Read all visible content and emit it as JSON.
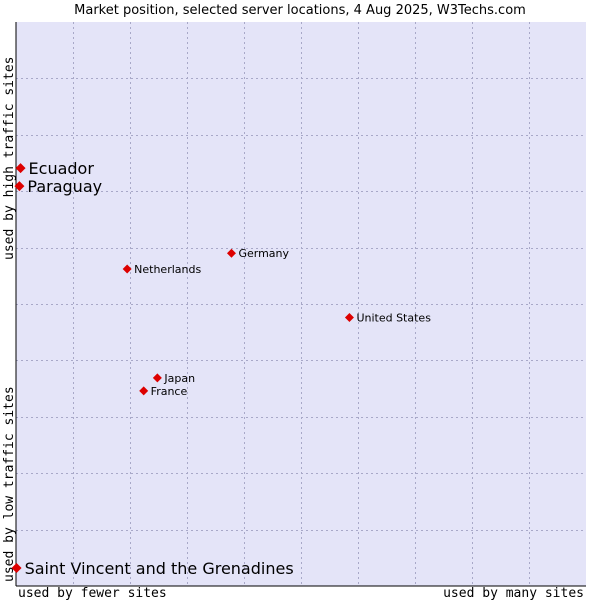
{
  "chart_data": {
    "type": "scatter",
    "title": "Market position, selected server locations, 4 Aug 2025, W3Techs.com",
    "xlabel_left": "used by fewer sites",
    "xlabel_right": "used by many sites",
    "ylabel_top": "used by high traffic sites",
    "ylabel_bottom": "used by low traffic sites",
    "xlim": [
      0,
      100
    ],
    "ylim": [
      0,
      100
    ],
    "grid": true,
    "colors": {
      "plot_bg": "#e4e4f8",
      "point": "#dd0000",
      "grid": "#a8a8c8"
    },
    "points": [
      {
        "label": "Ecuador",
        "x": 0.8,
        "y": 74.1,
        "size": "large"
      },
      {
        "label": "Paraguay",
        "x": 0.6,
        "y": 70.9,
        "size": "large"
      },
      {
        "label": "Germany",
        "x": 37.8,
        "y": 59.0,
        "size": "small"
      },
      {
        "label": "Netherlands",
        "x": 19.5,
        "y": 56.2,
        "size": "small"
      },
      {
        "label": "United States",
        "x": 58.5,
        "y": 47.6,
        "size": "small"
      },
      {
        "label": "Japan",
        "x": 24.8,
        "y": 36.9,
        "size": "small"
      },
      {
        "label": "France",
        "x": 22.4,
        "y": 34.6,
        "size": "small"
      },
      {
        "label": "Saint Vincent and the Grenadines",
        "x": 0.1,
        "y": 3.2,
        "size": "large"
      }
    ]
  }
}
